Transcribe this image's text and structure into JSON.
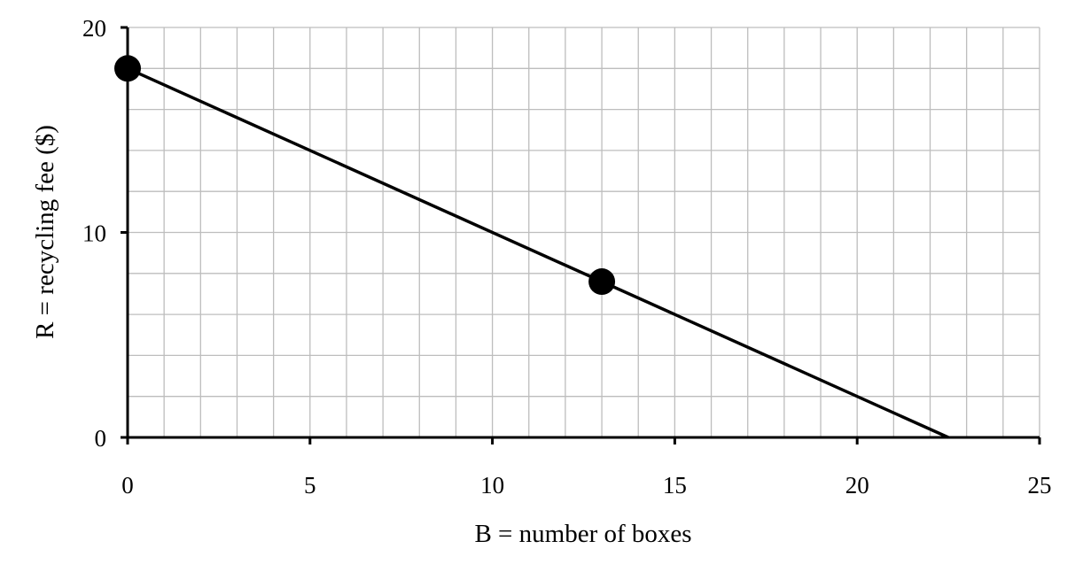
{
  "chart_data": {
    "type": "line",
    "title": "",
    "xlabel": "B = number of boxes",
    "ylabel": "R = recycling fee ($)",
    "xlim": [
      0,
      25
    ],
    "ylim": [
      0,
      20
    ],
    "x_ticks": [
      0,
      5,
      10,
      15,
      20,
      25
    ],
    "y_ticks": [
      0,
      10,
      20
    ],
    "x_tick_labels": [
      "0",
      "5",
      "10",
      "15",
      "20",
      "25"
    ],
    "y_tick_labels": [
      "0",
      "10",
      "20"
    ],
    "x_minor_step": 1,
    "y_minor_step": 2,
    "grid": true,
    "colors": {
      "line": "#000000",
      "grid": "#bdbdbd",
      "axis": "#000000"
    },
    "series": [
      {
        "x": [
          0,
          22.5
        ],
        "y": [
          18,
          0
        ]
      }
    ],
    "markers": [
      {
        "x": 0,
        "y": 18
      },
      {
        "x": 13,
        "y": 7.6
      }
    ]
  }
}
